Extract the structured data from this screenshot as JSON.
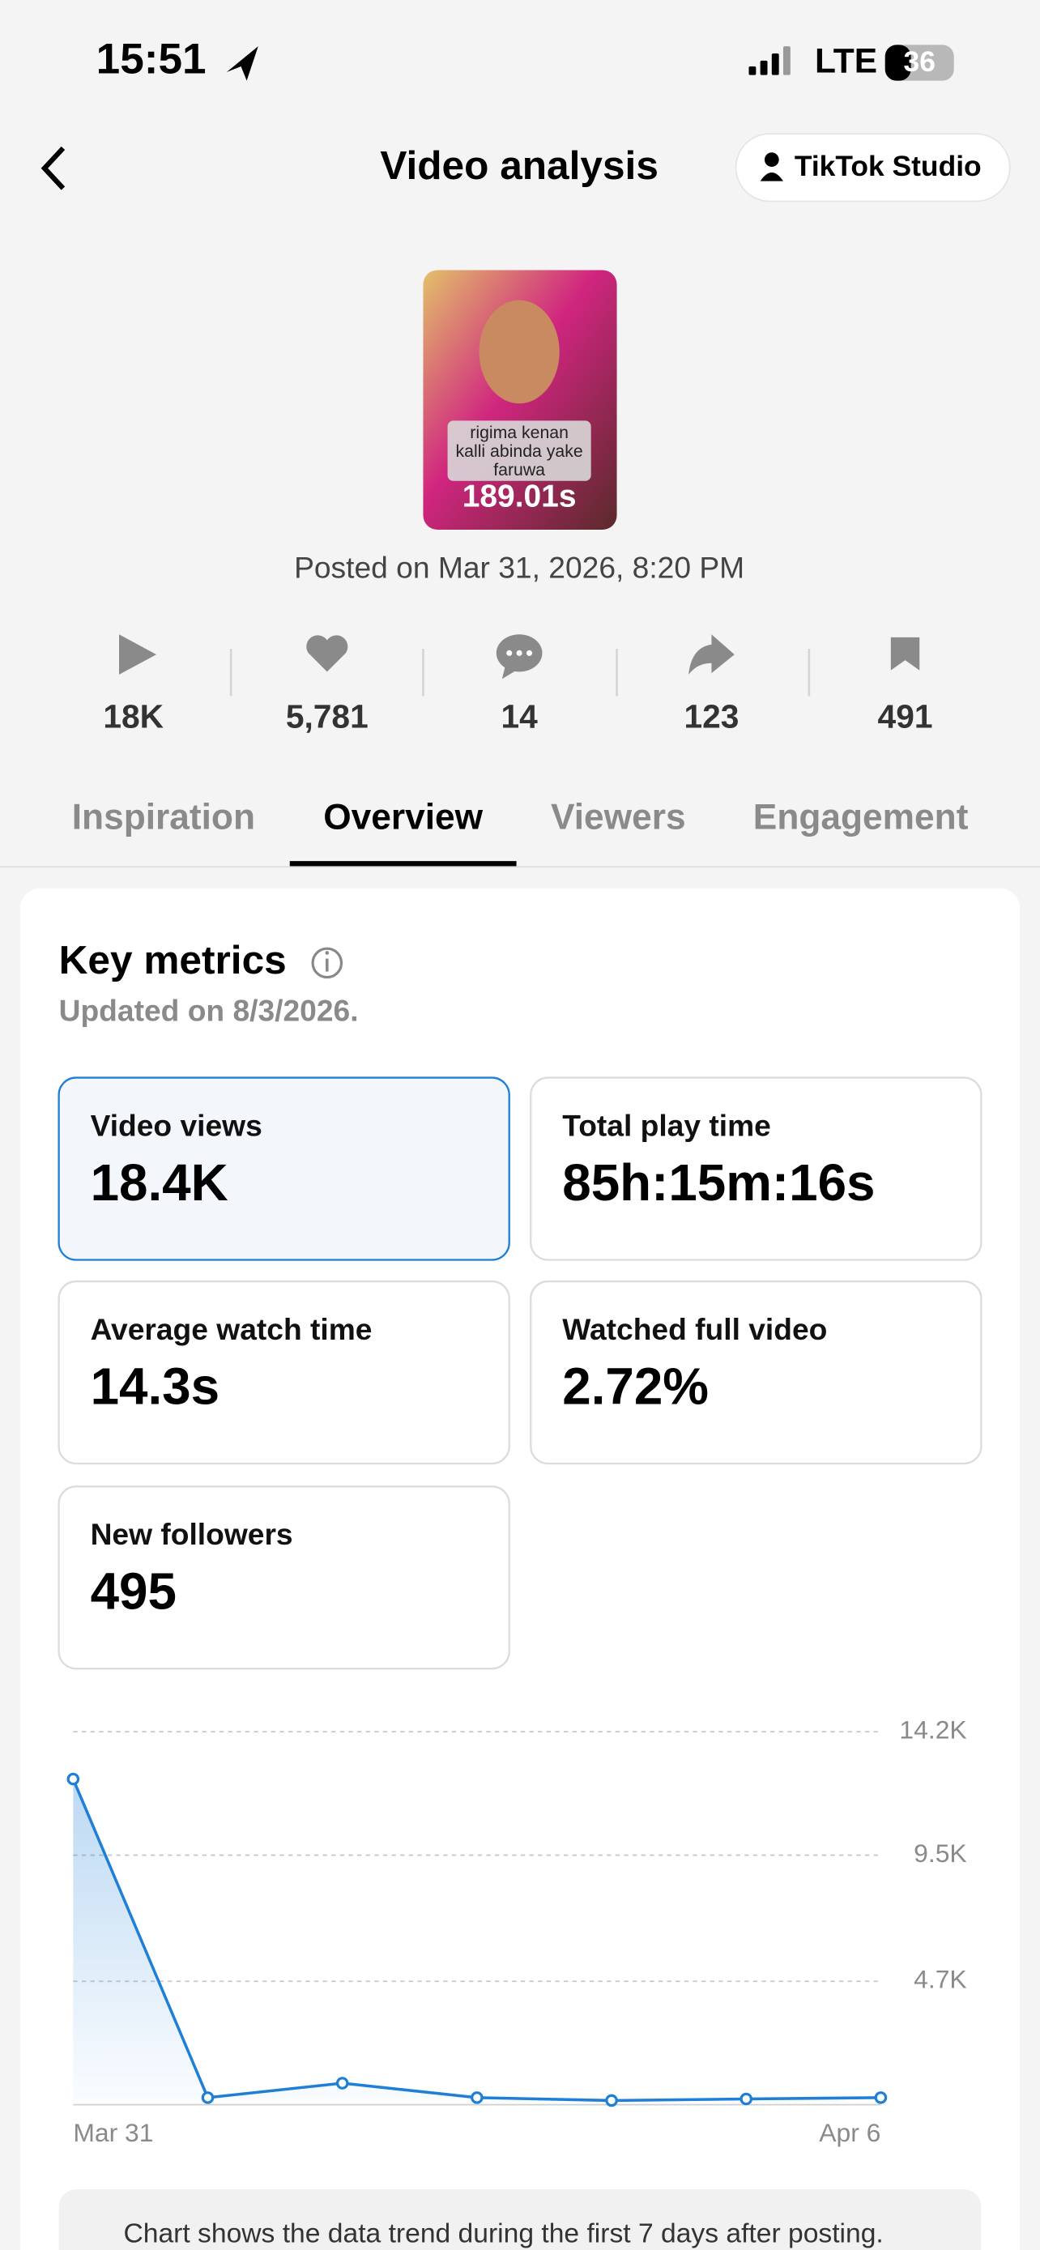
{
  "status_bar": {
    "time": "15:51",
    "network": "LTE",
    "battery": "36"
  },
  "header": {
    "title": "Video analysis",
    "studio_button": "TikTok Studio"
  },
  "video": {
    "caption_lines": [
      "rigima kenan",
      "kalli abinda yake",
      "faruwa"
    ],
    "duration": "189.01s",
    "posted": "Posted on Mar 31, 2026, 8:20 PM"
  },
  "stats": [
    "18K",
    "5,781",
    "14",
    "123",
    "491"
  ],
  "tabs": {
    "items": [
      "Inspiration",
      "Overview",
      "Viewers",
      "Engagement"
    ],
    "active": 1
  },
  "key_metrics": {
    "title": "Key metrics",
    "updated": "Updated on 8/3/2026.",
    "selected": 0,
    "cards": [
      {
        "label": "Video views",
        "value": "18.4K"
      },
      {
        "label": "Total play time",
        "value": "85h:15m:16s"
      },
      {
        "label": "Average watch time",
        "value": "14.3s"
      },
      {
        "label": "Watched full video",
        "value": "2.72%"
      },
      {
        "label": "New followers",
        "value": "495"
      }
    ]
  },
  "chart_data": {
    "type": "line",
    "categories": [
      "Mar 31",
      null,
      null,
      null,
      null,
      null,
      "Apr 6"
    ],
    "values": [
      12400,
      270,
      820,
      270,
      160,
      220,
      270
    ],
    "color": "#1f7fd6",
    "ylim": [
      0,
      14200
    ],
    "yticks": [
      {
        "value": 4700,
        "label": "4.7K"
      },
      {
        "value": 9500,
        "label": "9.5K"
      },
      {
        "value": 14200,
        "label": "14.2K"
      }
    ],
    "grid": true
  },
  "note": "Chart shows the data trend during the first 7 days after posting."
}
